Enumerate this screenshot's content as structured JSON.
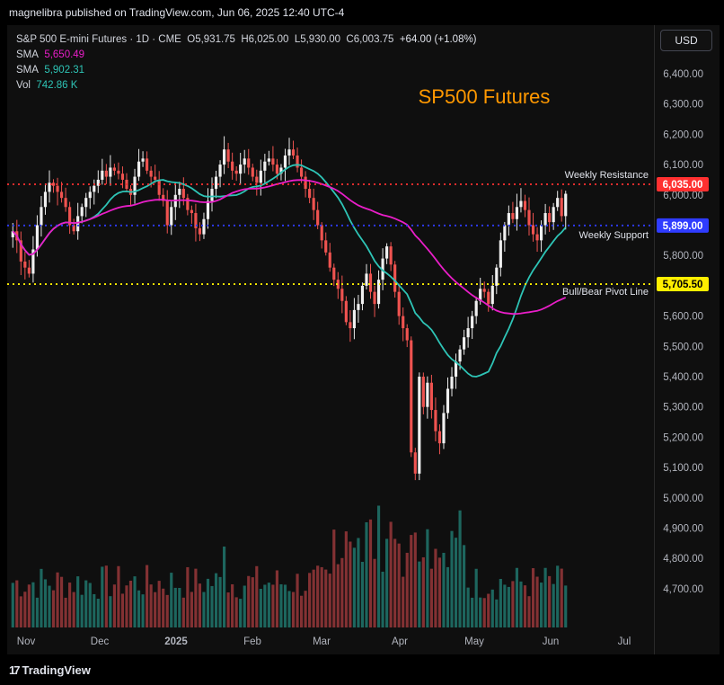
{
  "header": {
    "published": "magnelibra published on TradingView.com, Jun 06, 2025 12:40 UTC-4"
  },
  "legend": {
    "symbol": "S&P 500 E-mini Futures · 1D · CME",
    "o_label": "O",
    "o_value": "5,931.75",
    "h_label": "H",
    "h_value": "6,025.00",
    "l_label": "L",
    "l_value": "5,930.00",
    "c_label": "C",
    "c_value": "6,003.75",
    "change": "+64.00 (+1.08%)",
    "sma1_label": "SMA",
    "sma1_value": "5,650.49",
    "sma2_label": "SMA",
    "sma2_value": "5,902.31",
    "vol_label": "Vol",
    "vol_value": "742.86 K"
  },
  "currency_button": "USD",
  "footer": {
    "brand": "TradingView"
  },
  "colors": {
    "up": "#26a69a",
    "down": "#ef5350",
    "sma_fast": "#2ec4b6",
    "sma_slow": "#e91ec8",
    "resistance": "#ff3030",
    "support": "#2f3cff",
    "pivot": "#ffee00",
    "title": "#ff9800"
  },
  "chart_data": {
    "type": "candlestick",
    "title": "SP500 Futures",
    "yaxis_ticks": [
      "6,400.00",
      "6,300.00",
      "6,200.00",
      "6,100.00",
      "6,000.00",
      "5,900.00",
      "5,800.00",
      "5,700.00",
      "5,600.00",
      "5,500.00",
      "5,400.00",
      "5,300.00",
      "5,200.00",
      "5,100.00",
      "5,000.00",
      "4,900.00",
      "4,800.00",
      "4,700.00"
    ],
    "ylim": [
      4650,
      6480
    ],
    "xaxis_ticks": [
      "Nov",
      "Dec",
      "2025",
      "Feb",
      "Mar",
      "Apr",
      "May",
      "Jun",
      "Jul"
    ],
    "levels": [
      {
        "name": "Weekly Resistance",
        "value": 6035,
        "tag": "6,035.00"
      },
      {
        "name": "Weekly Support",
        "value": 5899,
        "tag": "5,899.00"
      },
      {
        "name": "Bull/Bear Pivot Line",
        "value": 5705.5,
        "tag": "5,705.50"
      }
    ],
    "series": [
      {
        "name": "SP500 Futures",
        "type": "candlestick",
        "close": [
          5880,
          5850,
          5780,
          5760,
          5740,
          5820,
          5900,
          5960,
          6010,
          6040,
          6030,
          6010,
          5990,
          5960,
          5900,
          5880,
          5930,
          5960,
          5990,
          6010,
          6030,
          6050,
          6080,
          6060,
          6090,
          6080,
          6070,
          6050,
          6020,
          6000,
          6060,
          6110,
          6120,
          6080,
          6060,
          6050,
          6000,
          5980,
          5900,
          5960,
          6000,
          6020,
          5990,
          5950,
          5940,
          5890,
          5870,
          5920,
          5980,
          6020,
          6060,
          6100,
          6150,
          6110,
          6080,
          6070,
          6100,
          6120,
          6090,
          6060,
          6040,
          6080,
          6110,
          6120,
          6100,
          6070,
          6090,
          6130,
          6150,
          6130,
          6090,
          6060,
          6020,
          5990,
          5950,
          5900,
          5850,
          5810,
          5760,
          5720,
          5690,
          5650,
          5580,
          5560,
          5620,
          5640,
          5700,
          5740,
          5680,
          5640,
          5720,
          5790,
          5830,
          5770,
          5680,
          5600,
          5560,
          5520,
          5150,
          5080,
          5400,
          5300,
          5380,
          5290,
          5220,
          5180,
          5280,
          5360,
          5400,
          5450,
          5490,
          5530,
          5560,
          5600,
          5650,
          5690,
          5680,
          5640,
          5700,
          5760,
          5850,
          5900,
          5940,
          5920,
          5960,
          5980,
          5950,
          5900,
          5870,
          5850,
          5900,
          5940,
          5910,
          5960,
          5990,
          5930,
          6003.75
        ],
        "volume_scale": "relative"
      },
      {
        "name": "SMA",
        "value": "5,650.49"
      },
      {
        "name": "SMA",
        "value": "5,902.31"
      }
    ]
  }
}
